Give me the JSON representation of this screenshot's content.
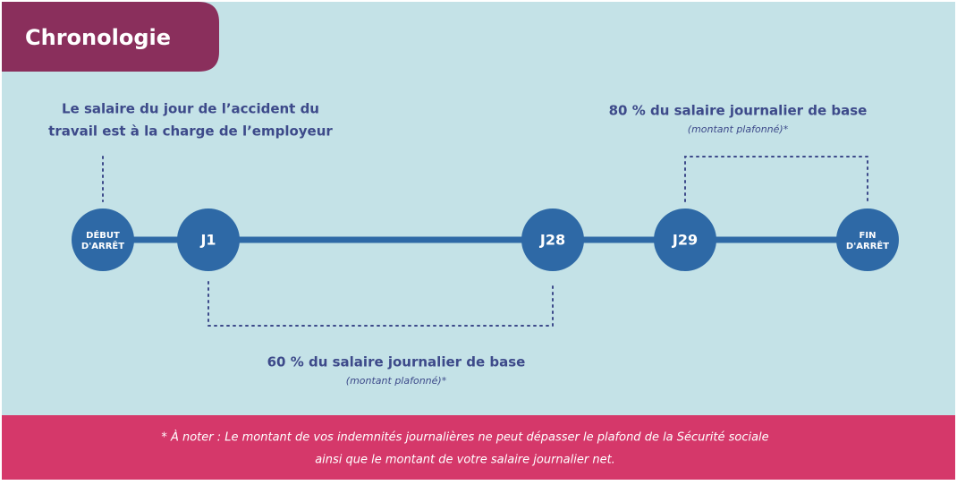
{
  "header": {
    "title": "Chronologie"
  },
  "nodes": [
    {
      "label": [
        "DÉBUT",
        "D'ARRÊT"
      ]
    },
    {
      "label": [
        "J1"
      ]
    },
    {
      "label": [
        "J28"
      ]
    },
    {
      "label": [
        "J29"
      ]
    },
    {
      "label": [
        "FIN",
        "D'ARRÊT"
      ]
    }
  ],
  "annotations": {
    "start": {
      "lines": [
        "Le salaire du jour de l’accident du",
        "travail est à la charge de l’employeur"
      ]
    },
    "j1_j28": {
      "text": "60 % du salaire journalier de base",
      "note": "(montant plafonné)*"
    },
    "j29_end": {
      "text": "80 % du salaire journalier de base",
      "note": "(montant plafonné)*"
    }
  },
  "footnote": {
    "lines": [
      "* À noter : Le montant de vos indemnités journalières ne peut dépasser le plafond de la Sécurité sociale",
      "ainsi que le montant de votre salaire journalier net."
    ]
  }
}
